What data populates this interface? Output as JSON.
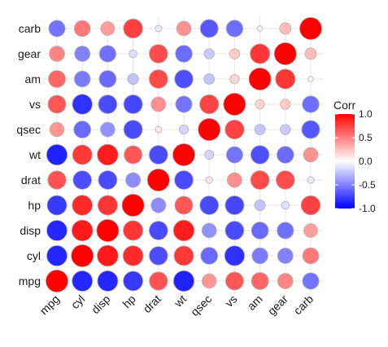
{
  "chart_data": {
    "type": "heatmap",
    "subtype": "circle-correlation-matrix",
    "variables": [
      "mpg",
      "cyl",
      "disp",
      "hp",
      "drat",
      "wt",
      "qsec",
      "vs",
      "am",
      "gear",
      "carb"
    ],
    "x_order": [
      "mpg",
      "cyl",
      "disp",
      "hp",
      "drat",
      "wt",
      "qsec",
      "vs",
      "am",
      "gear",
      "carb"
    ],
    "y_order_bottom_to_top": [
      "mpg",
      "cyl",
      "disp",
      "hp",
      "drat",
      "wt",
      "qsec",
      "vs",
      "am",
      "gear",
      "carb"
    ],
    "matrix": [
      [
        1.0,
        -0.85,
        -0.85,
        -0.78,
        0.68,
        -0.87,
        0.42,
        0.66,
        0.6,
        0.48,
        -0.55
      ],
      [
        -0.85,
        1.0,
        0.9,
        0.83,
        -0.7,
        0.78,
        -0.59,
        -0.81,
        -0.52,
        -0.49,
        0.53
      ],
      [
        -0.85,
        0.9,
        1.0,
        0.79,
        -0.71,
        0.89,
        -0.43,
        -0.71,
        -0.59,
        -0.56,
        0.39
      ],
      [
        -0.78,
        0.83,
        0.79,
        1.0,
        -0.45,
        0.66,
        -0.71,
        -0.72,
        -0.24,
        -0.13,
        0.75
      ],
      [
        0.68,
        -0.7,
        -0.71,
        -0.45,
        1.0,
        -0.71,
        0.09,
        0.44,
        0.71,
        0.7,
        -0.09
      ],
      [
        -0.87,
        0.78,
        0.89,
        0.66,
        -0.71,
        1.0,
        -0.17,
        -0.55,
        -0.69,
        -0.58,
        0.43
      ],
      [
        0.42,
        -0.59,
        -0.43,
        -0.71,
        0.09,
        -0.17,
        1.0,
        0.74,
        -0.23,
        -0.21,
        -0.66
      ],
      [
        0.66,
        -0.81,
        -0.71,
        -0.72,
        0.44,
        -0.55,
        0.74,
        1.0,
        0.17,
        0.21,
        -0.57
      ],
      [
        0.6,
        -0.52,
        -0.59,
        -0.24,
        0.71,
        -0.69,
        -0.23,
        0.17,
        1.0,
        0.79,
        0.06
      ],
      [
        0.48,
        -0.49,
        -0.56,
        -0.13,
        0.7,
        -0.58,
        -0.21,
        0.21,
        0.79,
        1.0,
        0.27
      ],
      [
        -0.55,
        0.53,
        0.39,
        0.75,
        -0.09,
        0.43,
        -0.66,
        -0.57,
        0.06,
        0.27,
        1.0
      ]
    ],
    "legend": {
      "title": "Corr",
      "ticks": [
        1.0,
        0.5,
        0.0,
        -0.5,
        -1.0
      ],
      "tick_labels": [
        "1.0",
        "0.5",
        "0.0",
        "-0.5",
        "-1.0"
      ],
      "placement": "right"
    },
    "scale": {
      "min": -1,
      "max": 1,
      "low_color": "#0000ff",
      "mid_color": "#ffffff",
      "high_color": "#ff0000"
    },
    "size_encodes": "absolute value of correlation",
    "grid": true,
    "x_tick_rotation_deg": 45
  }
}
